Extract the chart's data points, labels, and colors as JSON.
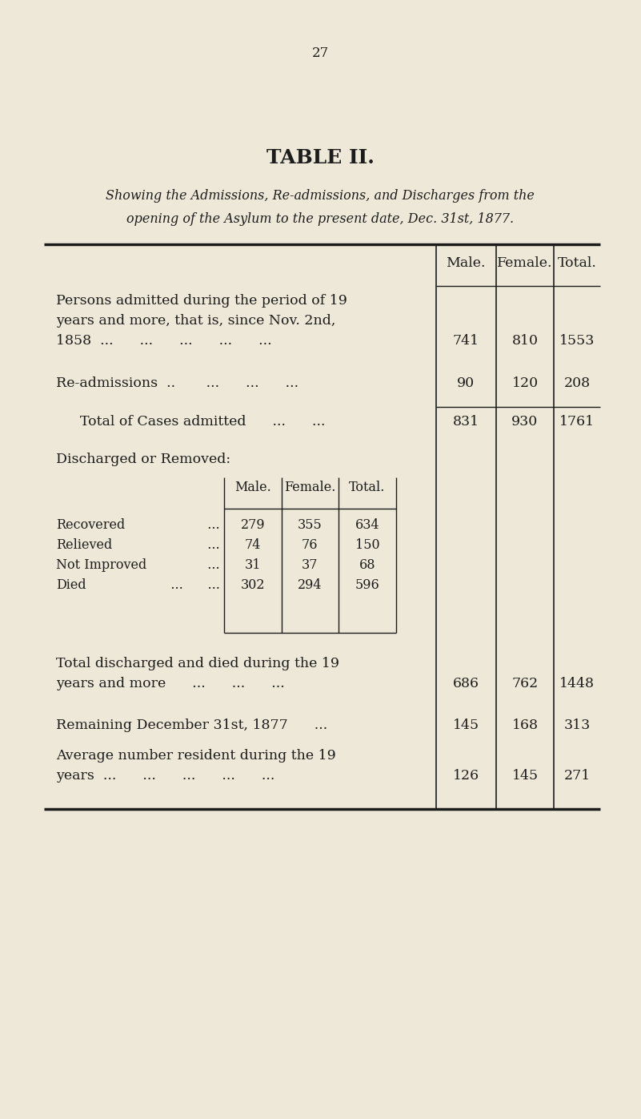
{
  "page_number": "27",
  "title": "TABLE II.",
  "subtitle_line1": "Showing the Admissions, Re-admissions, and Discharges from the",
  "subtitle_line2": "opening of the Asylum to the present date, Dec. 31st, 1877.",
  "bg_color": "#ede8d8",
  "text_color": "#1c1c1c",
  "col_headers": [
    "Male.",
    "Female.",
    "Total."
  ],
  "sub_col_headers": [
    "Male.",
    "Female.",
    "Total."
  ],
  "sub_labels": [
    "Recovered",
    "Relieved",
    "Not Improved",
    "Died"
  ],
  "sub_dots": [
    "...",
    "...",
    "...",
    "...   ..."
  ],
  "sub_males": [
    "279",
    "74",
    "31",
    "302"
  ],
  "sub_females": [
    "355",
    "76",
    "37",
    "294"
  ],
  "sub_totals": [
    "634",
    "150",
    "68",
    "596"
  ]
}
